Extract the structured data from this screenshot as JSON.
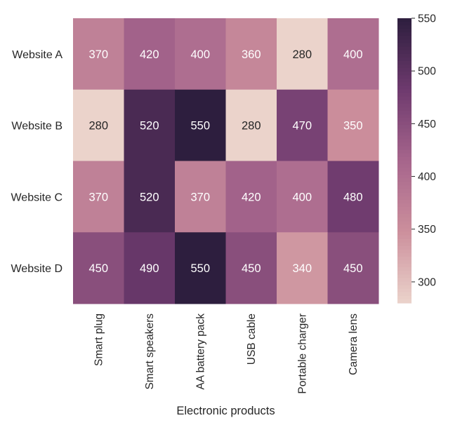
{
  "chart_data": {
    "type": "heatmap",
    "title": "",
    "xlabel": "Electronic products",
    "ylabel": "",
    "columns": [
      "Smart plug",
      "Smart speakers",
      "AA battery pack",
      "USB cable",
      "Portable charger",
      "Camera lens"
    ],
    "rows": [
      "Website A",
      "Website B",
      "Website C",
      "Website D"
    ],
    "values": [
      [
        370,
        420,
        400,
        360,
        280,
        400
      ],
      [
        280,
        520,
        550,
        280,
        470,
        350
      ],
      [
        370,
        520,
        370,
        420,
        400,
        480
      ],
      [
        450,
        490,
        550,
        450,
        340,
        450
      ]
    ],
    "colorbar": {
      "min": 280,
      "max": 550,
      "ticks": [
        300,
        350,
        400,
        450,
        500,
        550
      ]
    },
    "colors": {
      "low": "#ebd3cb",
      "mid_low": "#cc8f9c",
      "mid": "#a6658c",
      "mid_high": "#6e3a6e",
      "high": "#2d1e3e"
    },
    "grid": false
  }
}
